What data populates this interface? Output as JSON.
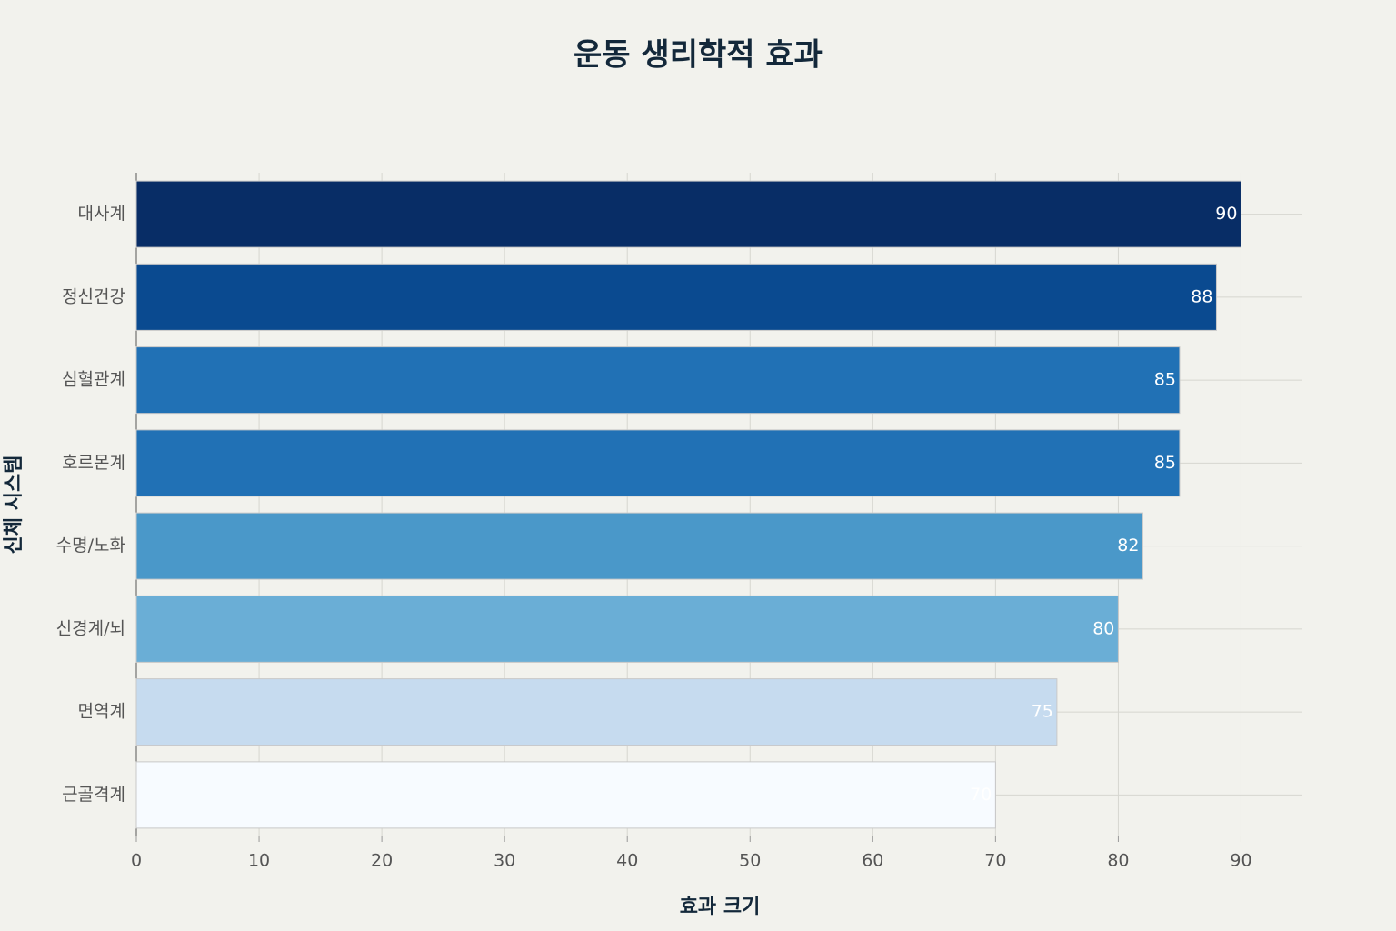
{
  "chart_data": {
    "type": "bar",
    "orientation": "horizontal",
    "title": "운동 생리학적 효과",
    "x_label": "효과 크기",
    "y_label": "신체 시스템",
    "categories": [
      "대사계",
      "정신건강",
      "심혈관계",
      "호르몬계",
      "수명/노화",
      "신경계/뇌",
      "면역계",
      "근골격계"
    ],
    "values": [
      90,
      88,
      85,
      85,
      82,
      80,
      75,
      70
    ],
    "colors": [
      "#082d66",
      "#0a4a90",
      "#2171b5",
      "#2171b5",
      "#4a98c9",
      "#6aaed6",
      "#c6dbef",
      "#f7fbff"
    ],
    "xlim": [
      0,
      95
    ],
    "xticks": [
      0,
      10,
      20,
      30,
      40,
      50,
      60,
      70,
      80,
      90
    ],
    "grid": true
  }
}
